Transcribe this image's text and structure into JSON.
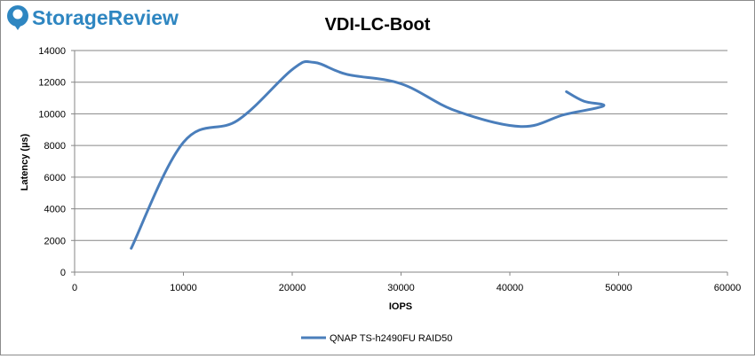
{
  "brand": {
    "name": "StorageReview",
    "logo_color": "#2e86c1"
  },
  "chart_data": {
    "type": "line",
    "title": "VDI-LC-Boot",
    "xlabel": "IOPS",
    "ylabel": "Latency (µs)",
    "xlim": [
      0,
      60000
    ],
    "ylim": [
      0,
      14000
    ],
    "x_ticks": [
      0,
      10000,
      20000,
      30000,
      40000,
      50000,
      60000
    ],
    "y_ticks": [
      0,
      2000,
      4000,
      6000,
      8000,
      10000,
      12000,
      14000
    ],
    "grid": {
      "horizontal": true,
      "vertical": false
    },
    "legend_position": "bottom",
    "series": [
      {
        "name": "QNAP TS-h2490FU RAID50",
        "color": "#4a7ebb",
        "x": [
          5200,
          10000,
          15000,
          20000,
          22000,
          25000,
          30000,
          35000,
          41000,
          45000,
          48600,
          46800,
          45200
        ],
        "y": [
          1500,
          8200,
          9600,
          12800,
          13250,
          12500,
          11900,
          10200,
          9200,
          9950,
          10500,
          10800,
          11400
        ]
      }
    ]
  }
}
